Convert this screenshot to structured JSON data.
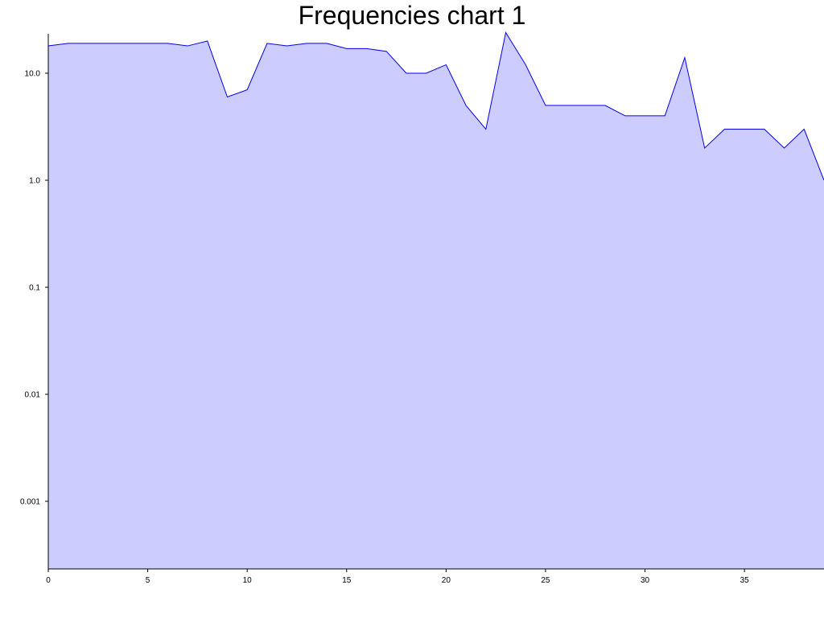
{
  "chart_data": {
    "type": "area",
    "title": "Frequencies chart 1",
    "xlabel": "",
    "ylabel": "",
    "yscale": "log",
    "grid": false,
    "legend": "none",
    "xlim": [
      0,
      39
    ],
    "ylim": [
      0.0002,
      25
    ],
    "x_ticks": [
      0,
      5,
      10,
      15,
      20,
      25,
      30,
      35
    ],
    "x_tick_labels": [
      "0",
      "5",
      "10",
      "15",
      "20",
      "25",
      "30",
      "35"
    ],
    "y_ticks": [
      0.001,
      0.01,
      0.1,
      1,
      10
    ],
    "y_tick_labels": [
      "0.001",
      "0.01",
      "0.1",
      "1.0",
      "10.0"
    ],
    "x": [
      0,
      1,
      2,
      3,
      4,
      5,
      6,
      7,
      8,
      9,
      10,
      11,
      12,
      13,
      14,
      15,
      16,
      17,
      18,
      19,
      20,
      21,
      22,
      23,
      24,
      25,
      26,
      27,
      28,
      29,
      30,
      31,
      32,
      33,
      34,
      35,
      36,
      37,
      38,
      39
    ],
    "values": [
      18,
      19,
      19,
      19,
      19,
      19,
      19,
      18,
      20,
      6,
      7,
      19,
      18,
      19,
      19,
      17,
      17,
      16,
      10,
      10,
      12,
      5,
      3,
      24,
      12,
      5,
      5,
      5,
      5,
      4,
      4,
      4,
      14,
      2,
      3,
      3,
      3,
      2,
      3,
      1
    ],
    "colors": {
      "line": "#0000ee",
      "fill": "#ccccff",
      "axis": "#000000"
    }
  }
}
